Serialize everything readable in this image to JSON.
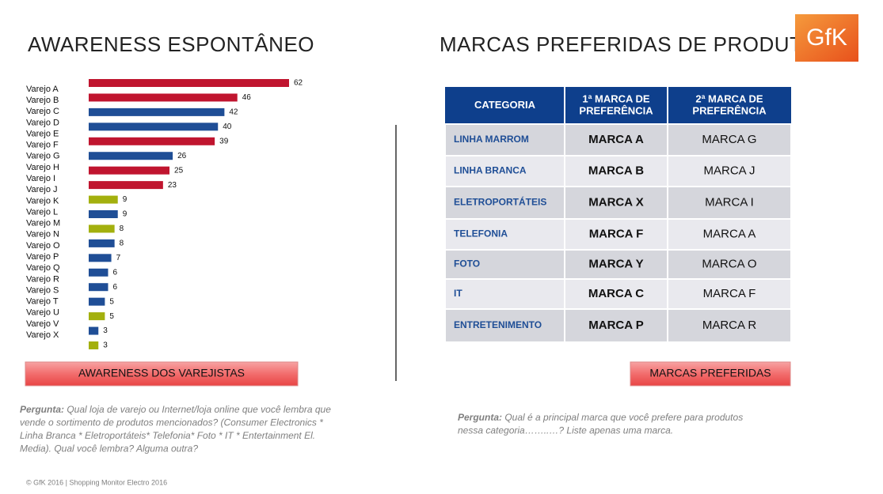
{
  "chart_data": {
    "type": "bar",
    "orientation": "horizontal",
    "title": "AWARENESS ESPONTÂNEO",
    "categories": [
      "Varejo A",
      "Varejo B",
      "Varejo C",
      "Varejo D",
      "Varejo E",
      "Varejo F",
      "Varejo G",
      "Varejo H",
      "Varejo I",
      "Varejo J",
      "Varejo K",
      "Varejo L",
      "Varejo M",
      "Varejo N",
      "Varejo O",
      "Varejo P",
      "Varejo Q",
      "Varejo R",
      "Varejo S",
      "Varejo T",
      "Varejo U",
      "Varejo V",
      "Varejo X"
    ],
    "values": [
      62,
      46,
      42,
      40,
      39,
      26,
      25,
      23,
      9,
      9,
      8,
      8,
      7,
      6,
      6,
      5,
      5,
      3,
      3,
      null,
      null,
      null,
      null
    ],
    "colors": [
      "#c0152f",
      "#c0152f",
      "#1f4e96",
      "#1f4e96",
      "#c0152f",
      "#1f4e96",
      "#c0152f",
      "#c0152f",
      "#a3b00e",
      "#1f4e96",
      "#a3b00e",
      "#1f4e96",
      "#1f4e96",
      "#1f4e96",
      "#1f4e96",
      "#1f4e96",
      "#a3b00e",
      "#1f4e96",
      "#a3b00e",
      null,
      null,
      null,
      null
    ],
    "button": "AWARENESS DOS VAREJISTAS",
    "question": {
      "label": "Pergunta:",
      "lines": [
        " Qual loja de varejo ou Internet/loja online que você lembra que",
        "vende o sortimento de produtos mencionados? (Consumer Electronics *",
        "Linha Branca * Eletroportáteis* Telefonia* Foto * IT * Entertainment El.",
        "Media). Qual você lembra? Alguma outra?"
      ]
    }
  },
  "table": {
    "title": "MARCAS PREFERIDAS DE PRODUTO",
    "header": [
      [
        "CATEGORIA"
      ],
      [
        "1ª MARCA DE",
        "PREFERÊNCIA"
      ],
      [
        "2ª MARCA DE",
        "PREFERÊNCIA"
      ]
    ],
    "rows": [
      [
        "LINHA MARROM",
        "MARCA A",
        "MARCA G"
      ],
      [
        "LINHA BRANCA",
        "MARCA B",
        "MARCA J"
      ],
      [
        "ELETROPORTÁTEIS",
        "MARCA X",
        "MARCA I"
      ],
      [
        "TELEFONIA",
        "MARCA F",
        "MARCA A"
      ],
      [
        "FOTO",
        "MARCA Y",
        "MARCA O"
      ],
      [
        "IT",
        "MARCA C",
        "MARCA F"
      ],
      [
        "ENTRETENIMENTO",
        "MARCA P",
        "MARCA R"
      ]
    ],
    "button": "MARCAS PREFERIDAS",
    "question": {
      "label": "Pergunta:",
      "lines": [
        " Qual é a principal marca que você  prefere para produtos",
        "nessa categoria……..…? Liste apenas uma marca."
      ]
    }
  },
  "logo": "GfK",
  "footer": "© GfK 2016 | Shopping Monitor Electro 2016"
}
